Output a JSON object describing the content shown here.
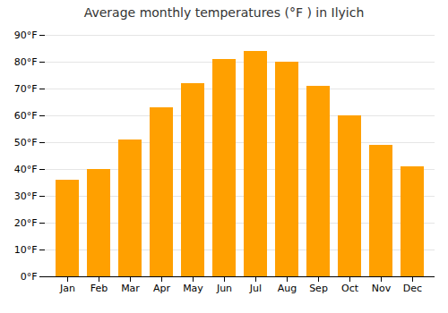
{
  "chart_data": {
    "type": "bar",
    "title": "Average monthly temperatures (°F ) in Ilyich",
    "categories": [
      "Jan",
      "Feb",
      "Mar",
      "Apr",
      "May",
      "Jun",
      "Jul",
      "Aug",
      "Sep",
      "Oct",
      "Nov",
      "Dec"
    ],
    "values": [
      36,
      40,
      51,
      63,
      72,
      81,
      84,
      80,
      71,
      60,
      49,
      41
    ],
    "color": "#FFA000",
    "ylim": [
      0,
      90
    ],
    "yticks": [
      {
        "value": 0,
        "label": "0°F"
      },
      {
        "value": 10,
        "label": "10°F"
      },
      {
        "value": 20,
        "label": "20°F"
      },
      {
        "value": 30,
        "label": "30°F"
      },
      {
        "value": 40,
        "label": "40°F"
      },
      {
        "value": 50,
        "label": "50°F"
      },
      {
        "value": 60,
        "label": "60°F"
      },
      {
        "value": 70,
        "label": "70°F"
      },
      {
        "value": 80,
        "label": "80°F"
      },
      {
        "value": 90,
        "label": "90°F"
      }
    ],
    "grid": true
  }
}
